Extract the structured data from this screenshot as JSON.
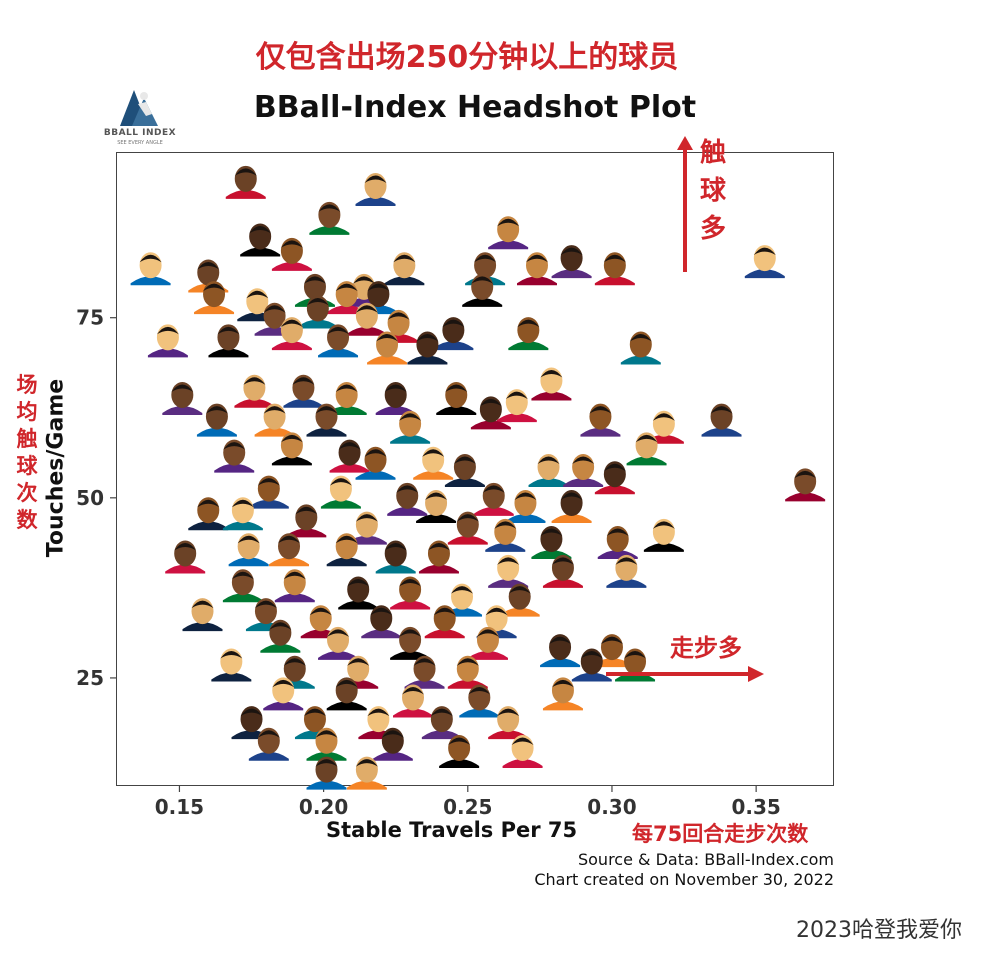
{
  "header": {
    "top_note": "仅包含出场250分钟以上的球员",
    "title": "BBall-Index Headshot Plot",
    "logo_text": "BBALL INDEX",
    "logo_subtext": "SEE EVERY ANGLE"
  },
  "annotations": {
    "up_label": "触球多",
    "right_label": "走步多",
    "ylabel_cn": "场均触球次数",
    "xlabel_cn": "每75回合走步次数"
  },
  "footer": {
    "source": "Source & Data: BBall-Index.com",
    "created": "Chart created on November 30, 2022",
    "watermark": "2023哈登我爱你"
  },
  "colors": {
    "accent_red": "#d0262b",
    "axis": "#444444",
    "text": "#111111"
  },
  "chart_data": {
    "type": "scatter",
    "title": "BBall-Index Headshot Plot",
    "xlabel": "Stable Travels Per 75",
    "ylabel": "Touches/Game",
    "xlim": [
      0.128,
      0.377
    ],
    "ylim": [
      10,
      98
    ],
    "xticks": [
      0.15,
      0.2,
      0.25,
      0.3,
      0.35
    ],
    "xtick_labels": [
      "0.15",
      "0.20",
      "0.25",
      "0.30",
      "0.35"
    ],
    "yticks": [
      25,
      50,
      75
    ],
    "ytick_labels": [
      "25",
      "50",
      "75"
    ],
    "grid": false,
    "series": [
      {
        "points": [
          [
            0.173,
            94
          ],
          [
            0.218,
            93
          ],
          [
            0.202,
            89
          ],
          [
            0.264,
            87
          ],
          [
            0.178,
            86
          ],
          [
            0.189,
            84
          ],
          [
            0.14,
            82
          ],
          [
            0.16,
            81
          ],
          [
            0.228,
            82
          ],
          [
            0.256,
            82
          ],
          [
            0.274,
            82
          ],
          [
            0.286,
            83
          ],
          [
            0.301,
            82
          ],
          [
            0.353,
            83
          ],
          [
            0.197,
            79
          ],
          [
            0.214,
            79
          ],
          [
            0.255,
            79
          ],
          [
            0.208,
            78
          ],
          [
            0.219,
            78
          ],
          [
            0.162,
            78
          ],
          [
            0.177,
            77
          ],
          [
            0.198,
            76
          ],
          [
            0.215,
            75
          ],
          [
            0.183,
            75
          ],
          [
            0.226,
            74
          ],
          [
            0.245,
            73
          ],
          [
            0.271,
            73
          ],
          [
            0.146,
            72
          ],
          [
            0.167,
            72
          ],
          [
            0.189,
            73
          ],
          [
            0.205,
            72
          ],
          [
            0.222,
            71
          ],
          [
            0.236,
            71
          ],
          [
            0.31,
            71
          ],
          [
            0.279,
            66
          ],
          [
            0.151,
            64
          ],
          [
            0.176,
            65
          ],
          [
            0.193,
            65
          ],
          [
            0.208,
            64
          ],
          [
            0.225,
            64
          ],
          [
            0.246,
            64
          ],
          [
            0.267,
            63
          ],
          [
            0.163,
            61
          ],
          [
            0.183,
            61
          ],
          [
            0.201,
            61
          ],
          [
            0.23,
            60
          ],
          [
            0.258,
            62
          ],
          [
            0.296,
            61
          ],
          [
            0.318,
            60
          ],
          [
            0.338,
            61
          ],
          [
            0.312,
            57
          ],
          [
            0.169,
            56
          ],
          [
            0.189,
            57
          ],
          [
            0.209,
            56
          ],
          [
            0.218,
            55
          ],
          [
            0.238,
            55
          ],
          [
            0.249,
            54
          ],
          [
            0.278,
            54
          ],
          [
            0.367,
            52
          ],
          [
            0.29,
            54
          ],
          [
            0.301,
            53
          ],
          [
            0.181,
            51
          ],
          [
            0.206,
            51
          ],
          [
            0.229,
            50
          ],
          [
            0.239,
            49
          ],
          [
            0.259,
            50
          ],
          [
            0.27,
            49
          ],
          [
            0.286,
            49
          ],
          [
            0.16,
            48
          ],
          [
            0.172,
            48
          ],
          [
            0.194,
            47
          ],
          [
            0.215,
            46
          ],
          [
            0.25,
            46
          ],
          [
            0.263,
            45
          ],
          [
            0.279,
            44
          ],
          [
            0.302,
            44
          ],
          [
            0.318,
            45
          ],
          [
            0.152,
            42
          ],
          [
            0.174,
            43
          ],
          [
            0.188,
            43
          ],
          [
            0.208,
            43
          ],
          [
            0.225,
            42
          ],
          [
            0.24,
            42
          ],
          [
            0.264,
            40
          ],
          [
            0.283,
            40
          ],
          [
            0.305,
            40
          ],
          [
            0.172,
            38
          ],
          [
            0.19,
            38
          ],
          [
            0.212,
            37
          ],
          [
            0.23,
            37
          ],
          [
            0.248,
            36
          ],
          [
            0.268,
            36
          ],
          [
            0.158,
            34
          ],
          [
            0.18,
            34
          ],
          [
            0.199,
            33
          ],
          [
            0.22,
            33
          ],
          [
            0.242,
            33
          ],
          [
            0.26,
            33
          ],
          [
            0.185,
            31
          ],
          [
            0.205,
            30
          ],
          [
            0.23,
            30
          ],
          [
            0.257,
            30
          ],
          [
            0.282,
            29
          ],
          [
            0.3,
            29
          ],
          [
            0.168,
            27
          ],
          [
            0.19,
            26
          ],
          [
            0.212,
            26
          ],
          [
            0.235,
            26
          ],
          [
            0.25,
            26
          ],
          [
            0.293,
            27
          ],
          [
            0.308,
            27
          ],
          [
            0.186,
            23
          ],
          [
            0.208,
            23
          ],
          [
            0.231,
            22
          ],
          [
            0.254,
            22
          ],
          [
            0.283,
            23
          ],
          [
            0.175,
            19
          ],
          [
            0.197,
            19
          ],
          [
            0.219,
            19
          ],
          [
            0.241,
            19
          ],
          [
            0.264,
            19
          ],
          [
            0.181,
            16
          ],
          [
            0.201,
            16
          ],
          [
            0.224,
            16
          ],
          [
            0.247,
            15
          ],
          [
            0.269,
            15
          ],
          [
            0.201,
            12
          ],
          [
            0.215,
            12
          ]
        ]
      }
    ]
  }
}
